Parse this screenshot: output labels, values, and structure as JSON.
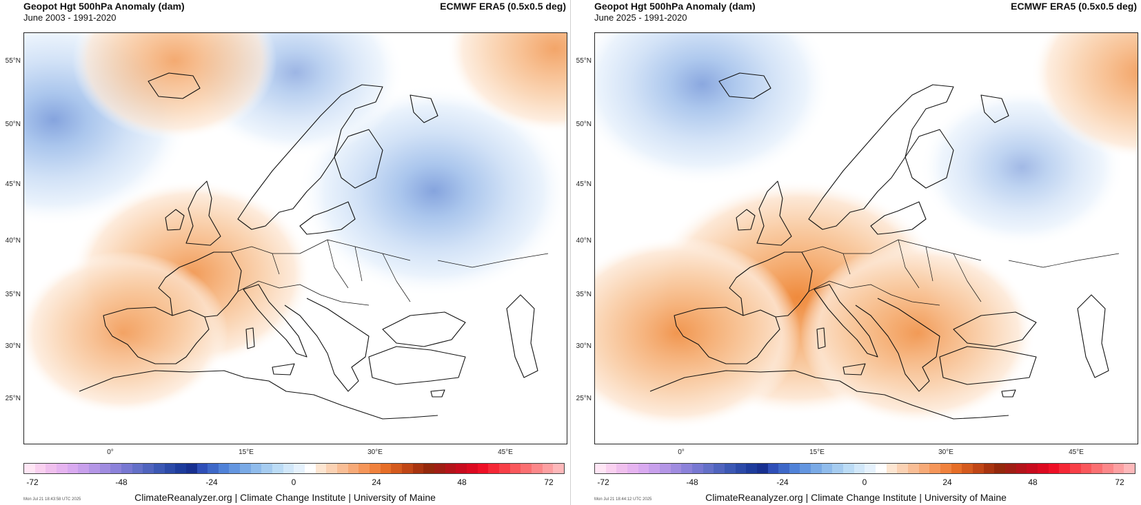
{
  "panels": [
    {
      "title": "Geopot Hgt 500hPa Anomaly (dam)",
      "subtitle": "June 2003 - 1991-2020",
      "source": "ECMWF ERA5 (0.5x0.5 deg)",
      "timestamp": "Mon Jul 21 18:43:58 UTC 2025",
      "anomaly_centers": [
        {
          "kind": "low",
          "lon": -6,
          "lat": 51,
          "strength": 1.0
        },
        {
          "kind": "low",
          "lon": 38,
          "lat": 45,
          "strength": 1.0
        },
        {
          "kind": "low",
          "lon": 22,
          "lat": 55,
          "strength": 0.55
        },
        {
          "kind": "high",
          "lon": 10,
          "lat": 38,
          "strength": 0.75
        },
        {
          "kind": "high",
          "lon": 2,
          "lat": 33,
          "strength": 0.5
        },
        {
          "kind": "high",
          "lon": 8,
          "lat": 56,
          "strength": 0.45
        },
        {
          "kind": "high",
          "lon": 52,
          "lat": 57,
          "strength": 0.55
        }
      ]
    },
    {
      "title": "Geopot Hgt 500hPa Anomaly (dam)",
      "subtitle": "June 2025 - 1991-2020",
      "source": "ECMWF ERA5 (0.5x0.5 deg)",
      "timestamp": "Mon Jul 21 18:44:12 UTC 2025",
      "anomaly_centers": [
        {
          "kind": "low",
          "lon": 3,
          "lat": 54,
          "strength": 0.9
        },
        {
          "kind": "low",
          "lon": 40,
          "lat": 47,
          "strength": 0.45
        },
        {
          "kind": "high",
          "lon": 14,
          "lat": 36,
          "strength": 1.25
        },
        {
          "kind": "high",
          "lon": 0,
          "lat": 33,
          "strength": 0.8
        },
        {
          "kind": "high",
          "lon": 28,
          "lat": 33,
          "strength": 0.7
        },
        {
          "kind": "high",
          "lon": 54,
          "lat": 55,
          "strength": 0.6
        }
      ]
    }
  ],
  "map": {
    "lat_labels": [
      "55°N",
      "50°N",
      "45°N",
      "40°N",
      "35°N",
      "30°N",
      "25°N"
    ],
    "lon_labels": [
      "0°",
      "15°E",
      "30°E",
      "45°E"
    ]
  },
  "colorbar": {
    "ticks": [
      "-72",
      "-48",
      "-24",
      "0",
      "24",
      "48",
      "72"
    ],
    "colors": [
      "#ffe6f5",
      "#fad1f0",
      "#f0c0ee",
      "#e6b4f0",
      "#d9aaf0",
      "#c8a0ec",
      "#b496e6",
      "#a08ce0",
      "#8c82da",
      "#7878d2",
      "#6470c8",
      "#5064be",
      "#3c58b4",
      "#2c4aa8",
      "#1e3c9c",
      "#183090",
      "#2f4fb8",
      "#3e68c8",
      "#5082d8",
      "#6496e0",
      "#7aaae6",
      "#90bcec",
      "#a6ccf0",
      "#bcdcf6",
      "#d2e8fa",
      "#e6f2fd",
      "#ffffff",
      "#fde6d2",
      "#fbd2b4",
      "#f9be96",
      "#f7aa78",
      "#f5965a",
      "#f0823e",
      "#e66e28",
      "#d45a1e",
      "#c04616",
      "#a83410",
      "#94280c",
      "#a01e14",
      "#b4141a",
      "#c80c1e",
      "#dc0a20",
      "#ee1026",
      "#f52836",
      "#f84048",
      "#fa585c",
      "#fb7072",
      "#fc888a",
      "#fda0a2",
      "#feb8ba"
    ]
  },
  "footer": "ClimateReanalyzer.org | Climate Change Institute | University of Maine"
}
